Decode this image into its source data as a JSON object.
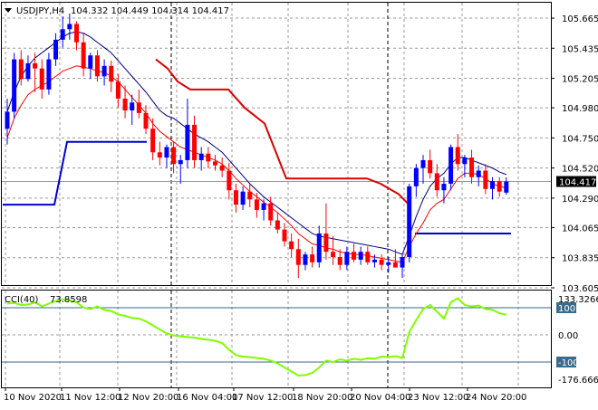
{
  "header": {
    "symbol": "USDJPY,H4",
    "ohlc": "104.332 104.449 104.314 104.417"
  },
  "indicator": {
    "name": "CCI(40)",
    "value": "73.8598",
    "max_label": "133.3266",
    "min_label": "-176.6664",
    "level_high": "100",
    "level_zero": "0.00",
    "level_low": "-100"
  },
  "colors": {
    "bull": "#0000ff",
    "bear": "#ff0000",
    "ma_fast": "#ff0000",
    "ma_slow": "#000080",
    "channel_up": "#0000cc",
    "channel_down": "#dd0000",
    "cci": "#7fff00"
  },
  "chart_data": {
    "type": "candlestick",
    "price_axis": [
      "105.665",
      "105.435",
      "105.205",
      "104.980",
      "104.750",
      "104.520",
      "104.290",
      "104.065",
      "103.835",
      "103.605"
    ],
    "current_price": "104.417",
    "time_axis": [
      "10 Nov 2020",
      "11 Nov 12:00",
      "12 Nov 20:00",
      "16 Nov 04:00",
      "17 Nov 12:00",
      "18 Nov 20:00",
      "20 Nov 04:00",
      "23 Nov 12:00",
      "24 Nov 20:00"
    ],
    "candles": [
      [
        104.82,
        105.05,
        104.7,
        104.95
      ],
      [
        104.95,
        105.4,
        104.9,
        105.35
      ],
      [
        105.35,
        105.42,
        105.15,
        105.2
      ],
      [
        105.2,
        105.38,
        105.18,
        105.32
      ],
      [
        105.32,
        105.4,
        105.1,
        105.28
      ],
      [
        105.28,
        105.35,
        105.05,
        105.12
      ],
      [
        105.12,
        105.4,
        105.08,
        105.35
      ],
      [
        105.35,
        105.55,
        105.3,
        105.5
      ],
      [
        105.5,
        105.68,
        105.44,
        105.58
      ],
      [
        105.58,
        105.7,
        105.5,
        105.62
      ],
      [
        105.62,
        105.64,
        105.42,
        105.48
      ],
      [
        105.48,
        105.55,
        105.22,
        105.28
      ],
      [
        105.28,
        105.4,
        105.2,
        105.38
      ],
      [
        105.38,
        105.42,
        105.18,
        105.22
      ],
      [
        105.22,
        105.35,
        105.15,
        105.3
      ],
      [
        105.3,
        105.34,
        105.1,
        105.18
      ],
      [
        105.18,
        105.24,
        104.98,
        105.05
      ],
      [
        105.05,
        105.15,
        104.9,
        104.96
      ],
      [
        104.96,
        105.08,
        104.85,
        105.02
      ],
      [
        105.02,
        105.12,
        104.9,
        104.94
      ],
      [
        104.94,
        105.0,
        104.78,
        104.82
      ],
      [
        104.82,
        104.9,
        104.58,
        104.64
      ],
      [
        104.64,
        104.72,
        104.54,
        104.6
      ],
      [
        104.6,
        104.7,
        104.52,
        104.68
      ],
      [
        104.68,
        104.72,
        104.48,
        104.55
      ],
      [
        104.55,
        104.62,
        104.4,
        104.58
      ],
      [
        104.58,
        105.05,
        104.52,
        104.85
      ],
      [
        104.85,
        104.92,
        104.52,
        104.58
      ],
      [
        104.58,
        104.68,
        104.5,
        104.63
      ],
      [
        104.63,
        104.68,
        104.52,
        104.57
      ],
      [
        104.57,
        104.62,
        104.5,
        104.54
      ],
      [
        104.54,
        104.6,
        104.45,
        104.5
      ],
      [
        104.5,
        104.56,
        104.28,
        104.35
      ],
      [
        104.35,
        104.4,
        104.18,
        104.24
      ],
      [
        104.24,
        104.38,
        104.2,
        104.34
      ],
      [
        104.34,
        104.4,
        104.22,
        104.28
      ],
      [
        104.28,
        104.33,
        104.14,
        104.2
      ],
      [
        104.2,
        104.28,
        104.12,
        104.25
      ],
      [
        104.25,
        104.3,
        104.08,
        104.12
      ],
      [
        104.12,
        104.18,
        104.02,
        104.05
      ],
      [
        104.05,
        104.1,
        103.92,
        103.96
      ],
      [
        103.96,
        104.02,
        103.84,
        103.9
      ],
      [
        103.9,
        103.98,
        103.68,
        103.78
      ],
      [
        103.78,
        103.88,
        103.74,
        103.86
      ],
      [
        103.86,
        103.92,
        103.76,
        103.8
      ],
      [
        103.8,
        104.08,
        103.76,
        104.02
      ],
      [
        104.02,
        104.25,
        103.82,
        103.88
      ],
      [
        103.88,
        104.0,
        103.78,
        103.84
      ],
      [
        103.84,
        103.9,
        103.74,
        103.78
      ],
      [
        103.78,
        103.92,
        103.74,
        103.88
      ],
      [
        103.88,
        103.94,
        103.8,
        103.82
      ],
      [
        103.82,
        103.92,
        103.78,
        103.88
      ],
      [
        103.88,
        103.92,
        103.78,
        103.8
      ],
      [
        103.8,
        103.86,
        103.76,
        103.82
      ],
      [
        103.82,
        103.86,
        103.74,
        103.78
      ],
      [
        103.78,
        103.84,
        103.72,
        103.8
      ],
      [
        103.8,
        103.9,
        103.76,
        103.76
      ],
      [
        103.76,
        103.86,
        103.68,
        103.84
      ],
      [
        103.84,
        104.4,
        103.8,
        104.38
      ],
      [
        104.38,
        104.55,
        104.3,
        104.52
      ],
      [
        104.52,
        104.62,
        104.4,
        104.58
      ],
      [
        104.58,
        104.66,
        104.44,
        104.48
      ],
      [
        104.48,
        104.55,
        104.3,
        104.35
      ],
      [
        104.35,
        104.45,
        104.25,
        104.4
      ],
      [
        104.4,
        104.7,
        104.35,
        104.68
      ],
      [
        104.68,
        104.78,
        104.5,
        104.55
      ],
      [
        104.55,
        104.62,
        104.45,
        104.6
      ],
      [
        104.6,
        104.66,
        104.4,
        104.45
      ],
      [
        104.45,
        104.54,
        104.38,
        104.5
      ],
      [
        104.5,
        104.55,
        104.32,
        104.36
      ],
      [
        104.36,
        104.45,
        104.28,
        104.42
      ],
      [
        104.42,
        104.45,
        104.3,
        104.34
      ],
      [
        104.332,
        104.449,
        104.314,
        104.417
      ]
    ],
    "cci": [
      115,
      118,
      110,
      112,
      120,
      105,
      115,
      125,
      130,
      128,
      120,
      100,
      95,
      105,
      92,
      88,
      75,
      70,
      62,
      60,
      50,
      35,
      20,
      5,
      -2,
      -5,
      -8,
      -10,
      -15,
      -18,
      -22,
      -30,
      -55,
      -75,
      -80,
      -82,
      -85,
      -88,
      -95,
      -105,
      -120,
      -135,
      -150,
      -148,
      -140,
      -120,
      -95,
      -100,
      -90,
      -95,
      -88,
      -92,
      -86,
      -88,
      -80,
      -82,
      -78,
      -85,
      10,
      55,
      95,
      110,
      85,
      60,
      120,
      135,
      110,
      105,
      108,
      95,
      92,
      80,
      74
    ],
    "ma_fast": [
      104.75,
      104.9,
      105.0,
      105.08,
      105.12,
      105.15,
      105.18,
      105.22,
      105.26,
      105.28,
      105.3,
      105.29,
      105.28,
      105.26,
      105.25,
      105.22,
      105.18,
      105.12,
      105.06,
      105.0,
      104.94,
      104.86,
      104.8,
      104.76,
      104.72,
      104.68,
      104.66,
      104.64,
      104.62,
      104.6,
      104.58,
      104.55,
      104.5,
      104.44,
      104.39,
      104.34,
      104.3,
      104.26,
      104.22,
      104.18,
      104.13,
      104.08,
      104.02,
      103.98,
      103.94,
      103.93,
      103.91,
      103.9,
      103.88,
      103.87,
      103.86,
      103.86,
      103.85,
      103.84,
      103.83,
      103.82,
      103.81,
      103.8,
      103.92,
      104.02,
      104.1,
      104.2,
      104.25,
      104.28,
      104.36,
      104.44,
      104.48,
      104.48,
      104.47,
      104.44,
      104.4,
      104.38,
      104.37
    ],
    "ma_slow": [
      104.95,
      105.1,
      105.22,
      105.3,
      105.36,
      105.4,
      105.44,
      105.48,
      105.52,
      105.55,
      105.56,
      105.55,
      105.52,
      105.48,
      105.44,
      105.4,
      105.34,
      105.28,
      105.22,
      105.16,
      105.1,
      105.03,
      104.96,
      104.92,
      104.9,
      104.86,
      104.82,
      104.78,
      104.75,
      104.72,
      104.68,
      104.64,
      104.58,
      104.52,
      104.46,
      104.4,
      104.35,
      104.3,
      104.26,
      104.22,
      104.18,
      104.14,
      104.1,
      104.06,
      104.02,
      104.0,
      103.99,
      103.98,
      103.97,
      103.96,
      103.95,
      103.94,
      103.93,
      103.92,
      103.91,
      103.9,
      103.88,
      103.86,
      104.0,
      104.15,
      104.28,
      104.38,
      104.44,
      104.48,
      104.55,
      104.6,
      104.6,
      104.58,
      104.56,
      104.54,
      104.52,
      104.49,
      104.47
    ]
  }
}
